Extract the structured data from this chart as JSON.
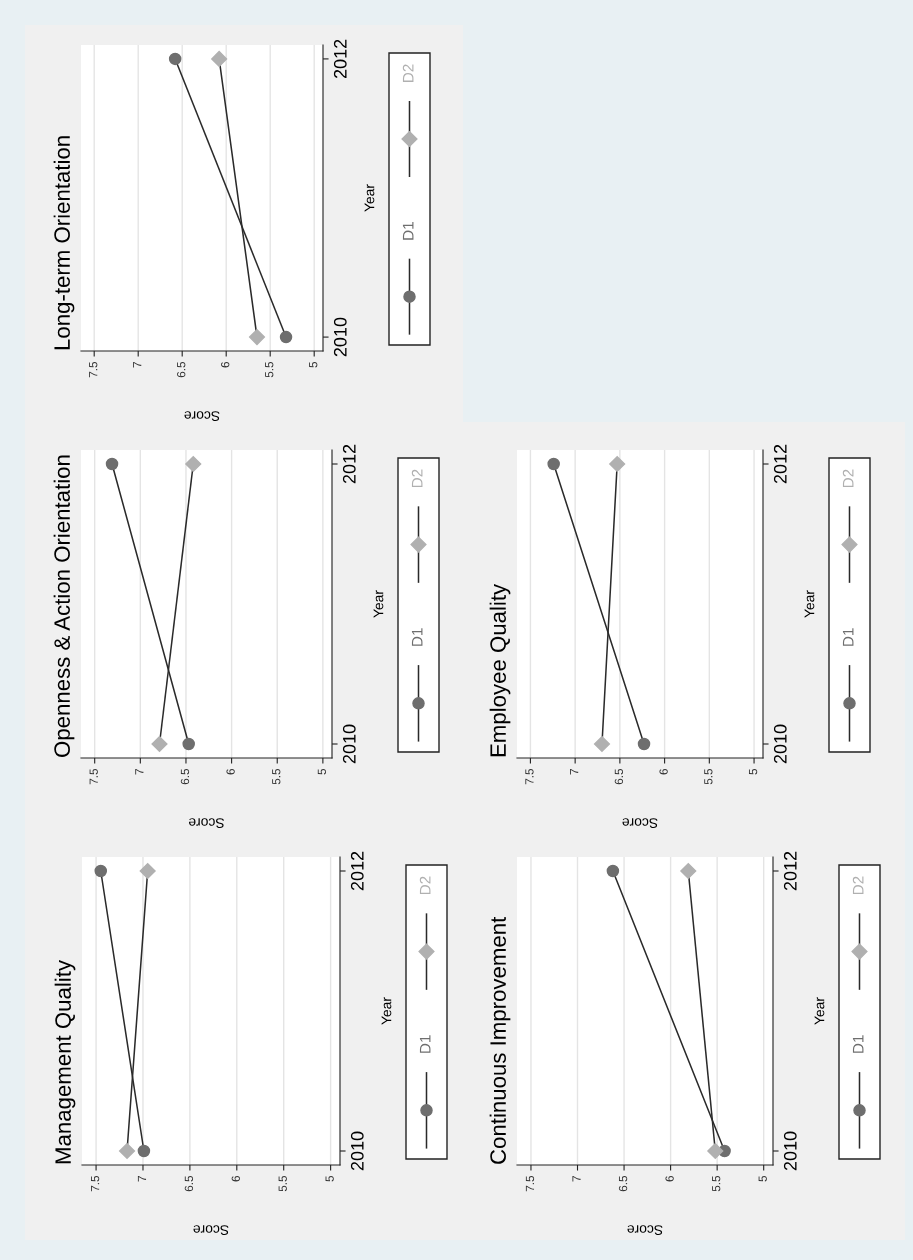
{
  "chart_data": [
    {
      "type": "line",
      "title": "Management Quality",
      "xlabel": "Score",
      "ylabel": "Year",
      "xlim": [
        7.65,
        4.9
      ],
      "xticks": [
        7.5,
        7,
        6.5,
        6,
        5.5,
        5
      ],
      "ylim": [
        2009.9,
        2012.1
      ],
      "yticks": [
        2010,
        2012
      ],
      "grid": "x",
      "legend": "right",
      "series": [
        {
          "name": "D1",
          "color": "#6e6e6e",
          "marker": "circle",
          "x": [
            6.99,
            7.45
          ],
          "values": [
            2010,
            2012
          ]
        },
        {
          "name": "D2",
          "color": "#b0b0b0",
          "marker": "diamond",
          "x": [
            7.17,
            6.95
          ],
          "values": [
            2010,
            2012
          ]
        }
      ]
    },
    {
      "type": "line",
      "title": "Continuous Improvement",
      "xlabel": "Score",
      "ylabel": "Year",
      "xlim": [
        7.65,
        4.9
      ],
      "xticks": [
        7.5,
        7,
        6.5,
        6,
        5.5,
        5
      ],
      "ylim": [
        2009.9,
        2012.1
      ],
      "yticks": [
        2010,
        2012
      ],
      "grid": "x",
      "legend": "right",
      "series": [
        {
          "name": "D1",
          "color": "#6e6e6e",
          "marker": "circle",
          "x": [
            5.42,
            6.62
          ],
          "values": [
            2010,
            2012
          ]
        },
        {
          "name": "D2",
          "color": "#b0b0b0",
          "marker": "diamond",
          "x": [
            5.52,
            5.81
          ],
          "values": [
            2010,
            2012
          ]
        }
      ]
    },
    {
      "type": "line",
      "title": "Openness & Action Orientation",
      "xlabel": "Score",
      "ylabel": "Year",
      "xlim": [
        7.65,
        4.9
      ],
      "xticks": [
        7.5,
        7,
        6.5,
        6,
        5.5,
        5
      ],
      "ylim": [
        2009.9,
        2012.1
      ],
      "yticks": [
        2010,
        2012
      ],
      "grid": "x",
      "legend": "right",
      "series": [
        {
          "name": "D1",
          "color": "#6e6e6e",
          "marker": "circle",
          "x": [
            6.47,
            7.31
          ],
          "values": [
            2010,
            2012
          ]
        },
        {
          "name": "D2",
          "color": "#b0b0b0",
          "marker": "diamond",
          "x": [
            6.79,
            6.42
          ],
          "values": [
            2010,
            2012
          ]
        }
      ]
    },
    {
      "type": "line",
      "title": "Employee Quality",
      "xlabel": "Score",
      "ylabel": "Year",
      "xlim": [
        7.65,
        4.9
      ],
      "xticks": [
        7.5,
        7,
        6.5,
        6,
        5.5,
        5
      ],
      "ylim": [
        2009.9,
        2012.1
      ],
      "yticks": [
        2010,
        2012
      ],
      "grid": "x",
      "legend": "right",
      "series": [
        {
          "name": "D1",
          "color": "#6e6e6e",
          "marker": "circle",
          "x": [
            6.23,
            7.24
          ],
          "values": [
            2010,
            2012
          ]
        },
        {
          "name": "D2",
          "color": "#b0b0b0",
          "marker": "diamond",
          "x": [
            6.7,
            6.53
          ],
          "values": [
            2010,
            2012
          ]
        }
      ]
    },
    {
      "type": "line",
      "title": "Long-term Orientation",
      "xlabel": "Score",
      "ylabel": "Year",
      "xlim": [
        7.65,
        4.9
      ],
      "xticks": [
        7.5,
        7,
        6.5,
        6,
        5.5,
        5
      ],
      "ylim": [
        2009.9,
        2012.1
      ],
      "yticks": [
        2010,
        2012
      ],
      "grid": "x",
      "legend": "right",
      "series": [
        {
          "name": "D1",
          "color": "#6e6e6e",
          "marker": "circle",
          "x": [
            5.32,
            6.58
          ],
          "values": [
            2010,
            2012
          ]
        },
        {
          "name": "D2",
          "color": "#b0b0b0",
          "marker": "diamond",
          "x": [
            5.65,
            6.08
          ],
          "values": [
            2010,
            2012
          ]
        }
      ]
    }
  ]
}
